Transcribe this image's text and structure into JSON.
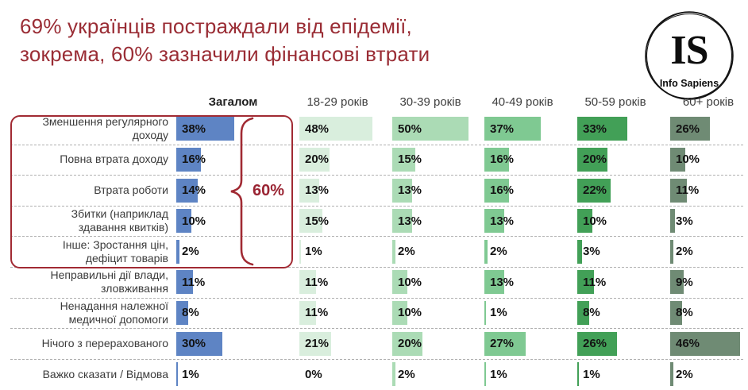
{
  "title": {
    "lines": [
      "69% українців постраждали від епідемії,",
      "зокрема, 60% зазначили фінансові втрати"
    ]
  },
  "logo": {
    "monogram": "IS",
    "name": "Info Sapiens"
  },
  "colors": {
    "title": "#9a2d35",
    "highlight": "#a12a33",
    "separator": "#b0b0b0",
    "percent_text": "#131313"
  },
  "chart_data": {
    "type": "bar",
    "orientation": "horizontal",
    "value_suffix": "%",
    "xlim": [
      0,
      50
    ],
    "title": "69% українців постраждали від епідемії, зокрема, 60% зазначили фінансові втрати",
    "columns": [
      {
        "label": "Загалом",
        "color": "#5e84c4"
      },
      {
        "label": "18-29 років",
        "color": "#d9eedd"
      },
      {
        "label": "30-39 років",
        "color": "#abdbb5"
      },
      {
        "label": "40-49 років",
        "color": "#7fc992"
      },
      {
        "label": "50-59 років",
        "color": "#42a057"
      },
      {
        "label": "60+ років",
        "color": "#6f8b74"
      }
    ],
    "rows": [
      {
        "label": "Зменшення регулярного доходу",
        "values": [
          38,
          48,
          50,
          37,
          33,
          26
        ]
      },
      {
        "label": "Повна втрата доходу",
        "values": [
          16,
          20,
          15,
          16,
          20,
          10
        ]
      },
      {
        "label": "Втрата роботи",
        "values": [
          14,
          13,
          13,
          16,
          22,
          11
        ]
      },
      {
        "label": "Збитки (наприклад здавання квитків)",
        "values": [
          10,
          15,
          13,
          13,
          10,
          3
        ]
      },
      {
        "label": "Інше: Зростання цін, дефіцит товарів",
        "values": [
          2,
          1,
          2,
          2,
          3,
          2
        ]
      },
      {
        "label": "Неправильні дії влади, зловживання",
        "values": [
          11,
          11,
          10,
          13,
          11,
          9
        ]
      },
      {
        "label": "Ненадання належної медичної допомоги",
        "values": [
          8,
          11,
          10,
          1,
          8,
          8
        ]
      },
      {
        "label": "Нічого з перерахованого",
        "values": [
          30,
          21,
          20,
          27,
          26,
          46
        ]
      },
      {
        "label": "Важко сказати / Відмова",
        "values": [
          1,
          0,
          2,
          1,
          1,
          2
        ]
      }
    ],
    "highlight": {
      "label": "60%",
      "rows_start": 0,
      "rows_end": 4,
      "note": "financial losses group"
    },
    "legend_position": "none",
    "grid": "dashed-row-separators"
  }
}
